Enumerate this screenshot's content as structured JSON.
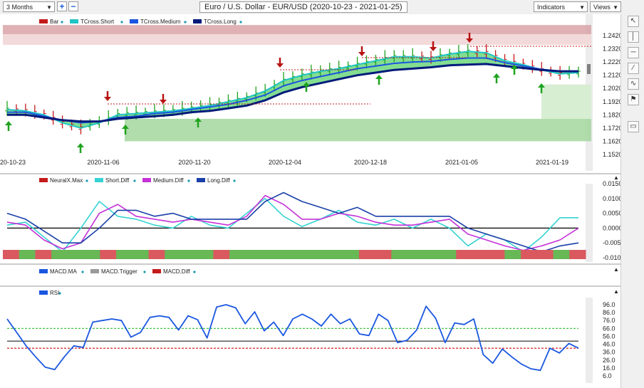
{
  "toolbar": {
    "timeframe": "3 Months",
    "title": "Euro / U.S. Dollar - EUR/USD (2020-10-23 - 2021-01-25)",
    "indicators_label": "Indicators",
    "views_label": "Views"
  },
  "icons": [
    "plus-icon",
    "minus-icon",
    "dropdown-arrow-icon",
    "close-icon",
    "vertical-line-icon",
    "horizontal-line-icon",
    "trendline-icon",
    "wave-icon",
    "flag-icon",
    "comment-icon"
  ],
  "colors": {
    "bar_up": "#1fa31f",
    "bar_down": "#c41a1a",
    "tcross_short": "#22c4c4",
    "tcross_medium": "#1a57e0",
    "tcross_long": "#001a7a",
    "short_diff": "#36d3d3",
    "medium_diff": "#c432d8",
    "long_diff": "#1a3fa8",
    "macd_ma": "#1a57e0",
    "rsi": "#1a57e0"
  },
  "chart_data": [
    {
      "type": "line",
      "title": "Euro / U.S. Dollar - EUR/USD (2020-10-23 - 2021-01-25)",
      "legend": [
        "Bar",
        "TCross.Short",
        "TCross.Medium",
        "TCross.Long"
      ],
      "x_ticks": [
        "20-10-23",
        "2020-11-06",
        "2020-11-20",
        "2020-12-04",
        "2020-12-18",
        "2021-01-05",
        "2021-01-19"
      ],
      "y_ticks": [
        "1.2420",
        "1.2320",
        "1.2220",
        "1.2120",
        "1.2020",
        "1.1920",
        "1.1820",
        "1.1720",
        "1.1620",
        "1.1520"
      ],
      "ylim": [
        1.152,
        1.242
      ],
      "series": [
        {
          "name": "TCross.Short",
          "values": [
            1.186,
            1.185,
            1.182,
            1.176,
            1.172,
            1.176,
            1.182,
            1.183,
            1.184,
            1.185,
            1.187,
            1.189,
            1.192,
            1.195,
            1.2,
            1.208,
            1.212,
            1.215,
            1.217,
            1.22,
            1.223,
            1.226,
            1.226,
            1.225,
            1.228,
            1.23,
            1.229,
            1.223,
            1.22,
            1.216,
            1.213,
            1.214
          ]
        },
        {
          "name": "TCross.Medium",
          "values": [
            1.184,
            1.184,
            1.181,
            1.178,
            1.176,
            1.177,
            1.18,
            1.181,
            1.183,
            1.184,
            1.186,
            1.188,
            1.19,
            1.193,
            1.197,
            1.204,
            1.208,
            1.211,
            1.214,
            1.217,
            1.219,
            1.221,
            1.222,
            1.2225,
            1.224,
            1.225,
            1.225,
            1.2215,
            1.219,
            1.2165,
            1.215,
            1.215
          ]
        },
        {
          "name": "TCross.Long",
          "values": [
            1.182,
            1.182,
            1.18,
            1.178,
            1.177,
            1.177,
            1.179,
            1.18,
            1.181,
            1.182,
            1.184,
            1.185,
            1.187,
            1.189,
            1.193,
            1.199,
            1.203,
            1.206,
            1.209,
            1.212,
            1.214,
            1.216,
            1.217,
            1.218,
            1.2195,
            1.22,
            1.2205,
            1.219,
            1.2175,
            1.216,
            1.215,
            1.215
          ]
        }
      ]
    },
    {
      "type": "line",
      "legend": [
        "NeuralX.Max",
        "Short.Diff",
        "Medium.Diff",
        "Long.Diff"
      ],
      "y_ticks": [
        "0.0150",
        "0.0100",
        "0.0050",
        "0.0000",
        "-0.0050",
        "-0.0100"
      ],
      "ylim": [
        -0.01,
        0.015
      ],
      "series": [
        {
          "name": "Short.Diff",
          "values": [
            0.001,
            0.002,
            -0.003,
            -0.008,
            0.0,
            0.009,
            0.004,
            0.003,
            0.001,
            0.0,
            0.004,
            0.001,
            0.0,
            0.005,
            0.01,
            0.004,
            0.0005,
            0.003,
            0.006,
            0.002,
            0.001,
            0.003,
            0.0,
            0.003,
            0.0,
            -0.006,
            -0.002,
            -0.004,
            -0.008,
            -0.003,
            0.0035,
            0.0035
          ]
        },
        {
          "name": "Medium.Diff",
          "values": [
            0.002,
            0.001,
            -0.004,
            -0.007,
            -0.005,
            0.005,
            0.008,
            0.004,
            0.003,
            0.002,
            0.003,
            0.002,
            0.001,
            0.004,
            0.011,
            0.008,
            0.003,
            0.003,
            0.005,
            0.004,
            0.002,
            0.001,
            0.001,
            0.002,
            0.003,
            -0.002,
            -0.004,
            -0.006,
            -0.0075,
            -0.006,
            -0.004,
            0.0
          ]
        },
        {
          "name": "Long.Diff",
          "values": [
            0.005,
            0.003,
            -0.001,
            -0.005,
            -0.005,
            0.0,
            0.006,
            0.006,
            0.004,
            0.005,
            0.003,
            0.003,
            0.003,
            0.003,
            0.009,
            0.012,
            0.009,
            0.007,
            0.005,
            0.007,
            0.004,
            0.004,
            0.004,
            0.004,
            0.004,
            0.0,
            -0.002,
            -0.004,
            -0.006,
            -0.008,
            -0.006,
            -0.005
          ]
        }
      ]
    },
    {
      "type": "line",
      "legend": [
        "MACD.MA",
        "MACD.Trigger",
        "MACD.Diff"
      ],
      "y_ticks": [],
      "series": []
    },
    {
      "type": "line",
      "legend": [
        "RSI"
      ],
      "y_ticks": [
        "96.0",
        "86.0",
        "76.0",
        "66.0",
        "56.0",
        "46.0",
        "36.0",
        "26.0",
        "16.0",
        "6.0"
      ],
      "ylim": [
        6.0,
        96.0
      ],
      "series": [
        {
          "name": "RSI",
          "values": [
            78,
            61,
            44,
            30,
            17,
            14,
            30,
            44,
            42,
            74,
            76,
            78,
            76,
            55,
            61,
            80,
            82,
            80,
            64,
            82,
            77,
            54,
            93,
            96,
            92,
            72,
            87,
            63,
            74,
            57,
            78,
            84,
            78,
            69,
            84,
            72,
            78,
            59,
            57,
            84,
            76,
            48,
            51,
            64,
            94,
            79,
            48,
            73,
            71,
            78,
            33,
            22,
            40,
            30,
            21,
            15,
            13,
            41,
            35,
            47,
            41
          ]
        }
      ],
      "reference_lines": [
        66,
        50,
        41
      ]
    }
  ]
}
